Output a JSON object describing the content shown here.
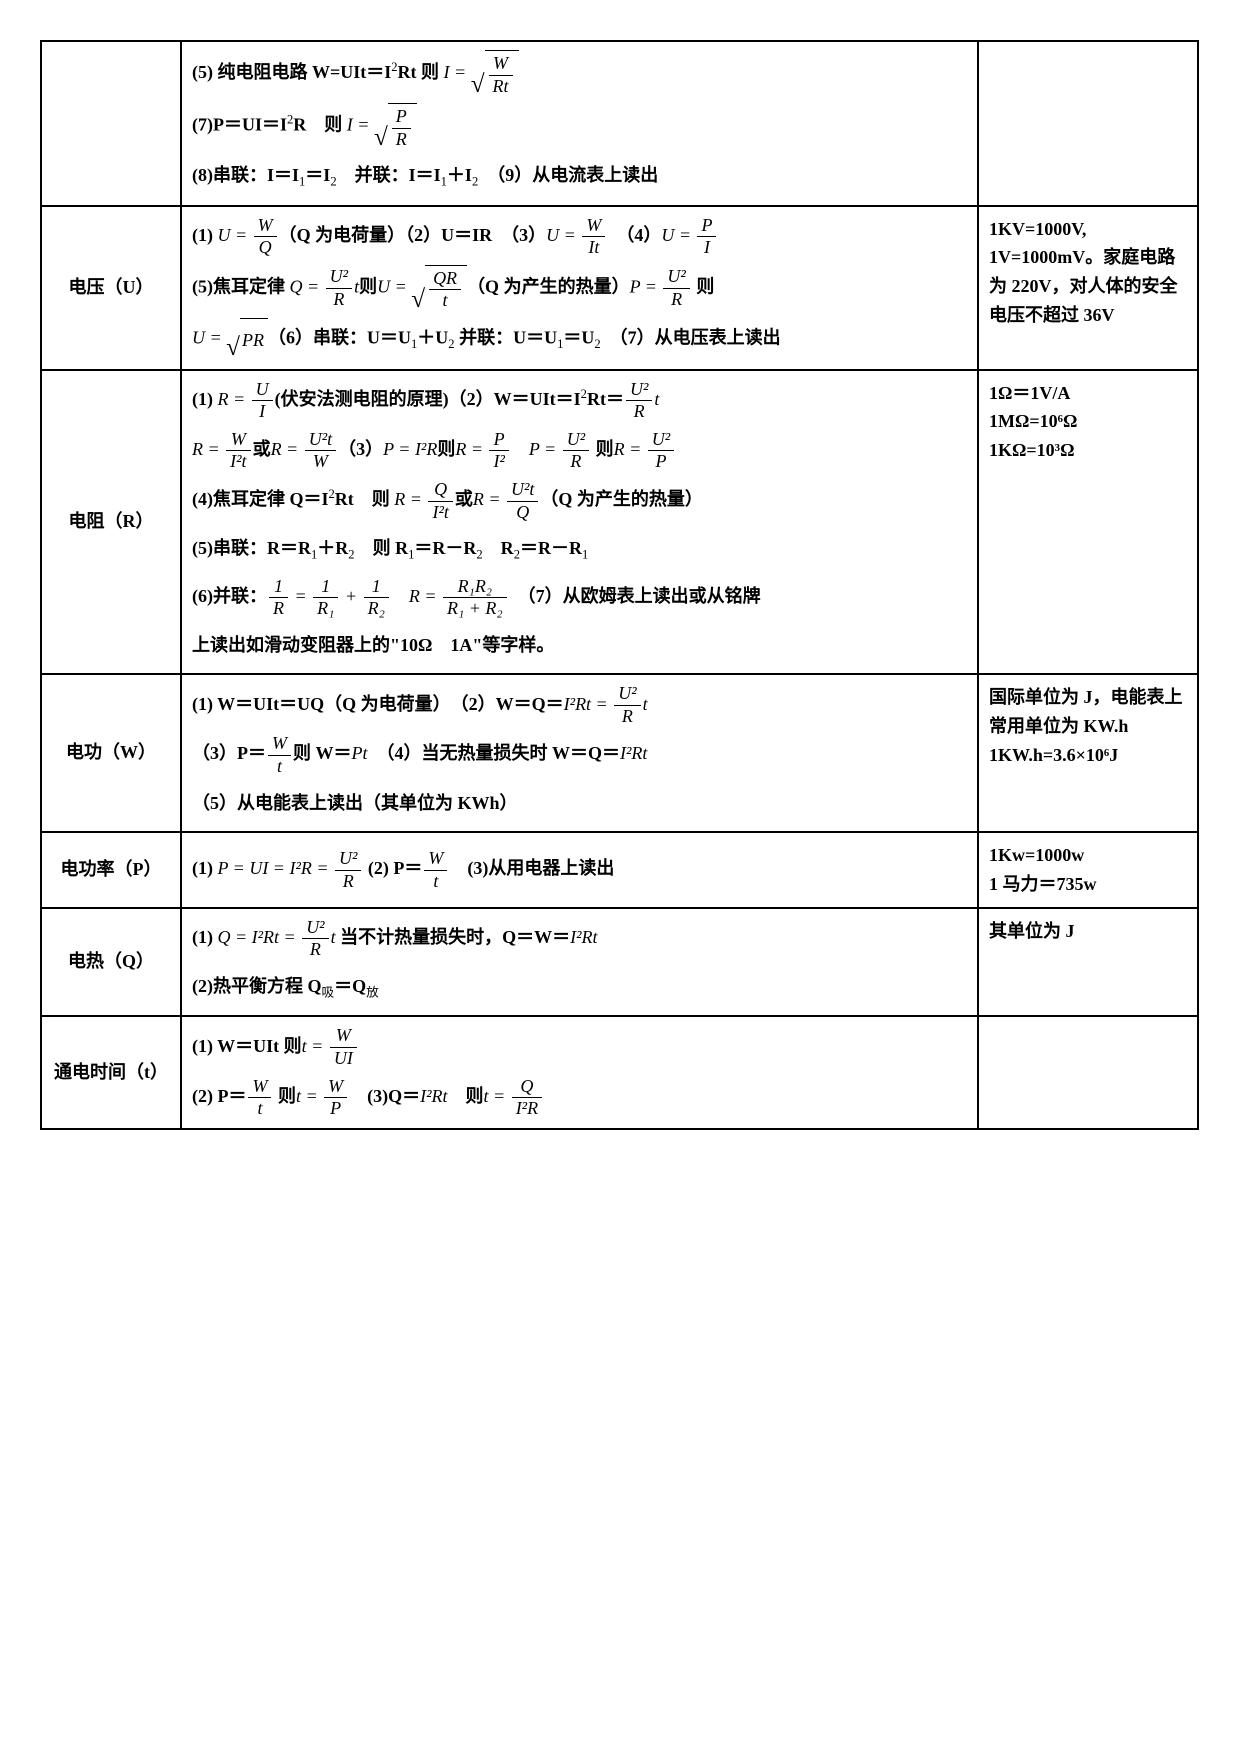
{
  "rows": [
    {
      "label": "",
      "notes": "",
      "lines": [
        {
          "parts": [
            {
              "t": "text",
              "v": "(5) 纯电阻电路 W=UIt＝I",
              "bold": true
            },
            {
              "t": "sup",
              "v": "2"
            },
            {
              "t": "text",
              "v": "Rt 则 ",
              "bold": true
            },
            {
              "t": "math",
              "v": "I = "
            },
            {
              "t": "sqrt",
              "num": "W",
              "den": "Rt"
            }
          ]
        },
        {
          "parts": [
            {
              "t": "text",
              "v": "(7)P＝UI＝I",
              "bold": true
            },
            {
              "t": "sup",
              "v": "2"
            },
            {
              "t": "text",
              "v": "R　则 ",
              "bold": true
            },
            {
              "t": "math",
              "v": "I = "
            },
            {
              "t": "sqrt",
              "num": "P",
              "den": "R"
            }
          ]
        },
        {
          "parts": [
            {
              "t": "text",
              "v": "(8)串联：I＝I",
              "bold": true
            },
            {
              "t": "sub",
              "v": "1"
            },
            {
              "t": "text",
              "v": "＝I",
              "bold": true
            },
            {
              "t": "sub",
              "v": "2"
            },
            {
              "t": "text",
              "v": "　并联：I＝I",
              "bold": true
            },
            {
              "t": "sub",
              "v": "1"
            },
            {
              "t": "text",
              "v": "＋I",
              "bold": true
            },
            {
              "t": "sub",
              "v": "2"
            },
            {
              "t": "text",
              "v": "　（9）从电流表上读出",
              "bold": true
            }
          ]
        }
      ]
    },
    {
      "label": "电压（U）",
      "notes": "1KV=1000V,\n1V=1000mV。家庭电路为 220V，对人体的安全电压不超过 36V",
      "lines": [
        {
          "parts": [
            {
              "t": "text",
              "v": "(1) ",
              "bold": true
            },
            {
              "t": "math",
              "v": "U = "
            },
            {
              "t": "frac",
              "num": "W",
              "den": "Q"
            },
            {
              "t": "text",
              "v": "（Q 为电荷量）（2）U＝IR　（3）",
              "bold": true
            },
            {
              "t": "math",
              "v": "U = "
            },
            {
              "t": "frac",
              "num": "W",
              "den": "It"
            },
            {
              "t": "text",
              "v": "　（4）",
              "bold": true
            },
            {
              "t": "math",
              "v": "U = "
            },
            {
              "t": "frac",
              "num": "P",
              "den": "I"
            }
          ]
        },
        {
          "parts": [
            {
              "t": "text",
              "v": "(5)焦耳定律 ",
              "bold": true
            },
            {
              "t": "math",
              "v": "Q = "
            },
            {
              "t": "frac",
              "num": "U²",
              "den": "R"
            },
            {
              "t": "math",
              "v": "t"
            },
            {
              "t": "text",
              "v": "则",
              "bold": true
            },
            {
              "t": "math",
              "v": "U = "
            },
            {
              "t": "sqrt",
              "num": "QR",
              "den": "t"
            },
            {
              "t": "text",
              "v": "（Q 为产生的热量）",
              "bold": true
            },
            {
              "t": "math",
              "v": "P = "
            },
            {
              "t": "frac",
              "num": "U²",
              "den": "R"
            },
            {
              "t": "text",
              "v": " 则",
              "bold": true
            }
          ]
        },
        {
          "parts": [
            {
              "t": "math",
              "v": "U = "
            },
            {
              "t": "sqrtflat",
              "v": "PR"
            },
            {
              "t": "text",
              "v": "（6）串联：U＝U",
              "bold": true
            },
            {
              "t": "sub",
              "v": "1"
            },
            {
              "t": "text",
              "v": "＋U",
              "bold": true
            },
            {
              "t": "sub",
              "v": "2"
            },
            {
              "t": "text",
              "v": " 并联：U＝U",
              "bold": true
            },
            {
              "t": "sub",
              "v": "1"
            },
            {
              "t": "text",
              "v": "＝U",
              "bold": true
            },
            {
              "t": "sub",
              "v": "2"
            },
            {
              "t": "text",
              "v": "　（7）从电压表上读出",
              "bold": true
            }
          ]
        }
      ]
    },
    {
      "label": "电阻（R）",
      "notes": "1Ω＝1V/A\n1MΩ=10⁶Ω\n1KΩ=10³Ω",
      "lines": [
        {
          "parts": [
            {
              "t": "text",
              "v": "(1) ",
              "bold": true
            },
            {
              "t": "math",
              "v": "R = "
            },
            {
              "t": "frac",
              "num": "U",
              "den": "I"
            },
            {
              "t": "text",
              "v": "(伏安法测电阻的原理)（2）W＝UIt＝I",
              "bold": true
            },
            {
              "t": "sup",
              "v": "2"
            },
            {
              "t": "text",
              "v": "Rt＝",
              "bold": true
            },
            {
              "t": "frac",
              "num": "U²",
              "den": "R"
            },
            {
              "t": "math",
              "v": "t"
            }
          ]
        },
        {
          "parts": [
            {
              "t": "math",
              "v": "R = "
            },
            {
              "t": "frac",
              "num": "W",
              "den": "I²t"
            },
            {
              "t": "text",
              "v": "或",
              "bold": true
            },
            {
              "t": "math",
              "v": "R = "
            },
            {
              "t": "frac",
              "num": "U²t",
              "den": "W"
            },
            {
              "t": "text",
              "v": "（3）",
              "bold": true
            },
            {
              "t": "math",
              "v": "P = I²R"
            },
            {
              "t": "text",
              "v": "则",
              "bold": true
            },
            {
              "t": "math",
              "v": "R = "
            },
            {
              "t": "frac",
              "num": "P",
              "den": "I²"
            },
            {
              "t": "text",
              "v": "　",
              "bold": true
            },
            {
              "t": "math",
              "v": "P = "
            },
            {
              "t": "frac",
              "num": "U²",
              "den": "R"
            },
            {
              "t": "text",
              "v": " 则",
              "bold": true
            },
            {
              "t": "math",
              "v": "R = "
            },
            {
              "t": "frac",
              "num": "U²",
              "den": "P"
            }
          ]
        },
        {
          "parts": [
            {
              "t": "text",
              "v": "(4)焦耳定律 Q＝I",
              "bold": true
            },
            {
              "t": "sup",
              "v": "2"
            },
            {
              "t": "text",
              "v": "Rt　则 ",
              "bold": true
            },
            {
              "t": "math",
              "v": "R = "
            },
            {
              "t": "frac",
              "num": "Q",
              "den": "I²t"
            },
            {
              "t": "text",
              "v": "或",
              "bold": true
            },
            {
              "t": "math",
              "v": "R = "
            },
            {
              "t": "frac",
              "num": "U²t",
              "den": "Q"
            },
            {
              "t": "text",
              "v": "（Q 为产生的热量）",
              "bold": true
            }
          ]
        },
        {
          "parts": [
            {
              "t": "text",
              "v": "(5)串联：R＝R",
              "bold": true
            },
            {
              "t": "sub",
              "v": "1"
            },
            {
              "t": "text",
              "v": "＋R",
              "bold": true
            },
            {
              "t": "sub",
              "v": "2"
            },
            {
              "t": "text",
              "v": "　则 R",
              "bold": true
            },
            {
              "t": "sub",
              "v": "1"
            },
            {
              "t": "text",
              "v": "＝R－R",
              "bold": true
            },
            {
              "t": "sub",
              "v": "2"
            },
            {
              "t": "text",
              "v": "　R",
              "bold": true
            },
            {
              "t": "sub",
              "v": "2"
            },
            {
              "t": "text",
              "v": "＝R－R",
              "bold": true
            },
            {
              "t": "sub",
              "v": "1"
            }
          ]
        },
        {
          "parts": [
            {
              "t": "text",
              "v": "(6)并联：",
              "bold": true
            },
            {
              "t": "frac",
              "num": "1",
              "den": "R"
            },
            {
              "t": "math",
              "v": " = "
            },
            {
              "t": "frac",
              "num": "1",
              "den": "R₁"
            },
            {
              "t": "math",
              "v": " + "
            },
            {
              "t": "frac",
              "num": "1",
              "den": "R₂"
            },
            {
              "t": "text",
              "v": "　",
              "bold": true
            },
            {
              "t": "math",
              "v": "R = "
            },
            {
              "t": "frac",
              "num": "R₁R₂",
              "den": "R₁ + R₂"
            },
            {
              "t": "text",
              "v": "　（7）从欧姆表上读出或从铭牌",
              "bold": true
            }
          ]
        },
        {
          "parts": [
            {
              "t": "text",
              "v": "上读出如滑动变阻器上的\"10Ω　1A\"等字样。",
              "bold": true
            }
          ]
        }
      ]
    },
    {
      "label": "电功（W）",
      "notes": "国际单位为 J，电能表上常用单位为 KW.h\n1KW.h=3.6×10⁶J",
      "lines": [
        {
          "parts": [
            {
              "t": "text",
              "v": "(1) W＝UIt＝UQ（Q 为电荷量）　（2）W＝Q＝",
              "bold": true
            },
            {
              "t": "math",
              "v": "I²Rt = "
            },
            {
              "t": "frac",
              "num": "U²",
              "den": "R"
            },
            {
              "t": "math",
              "v": "t"
            }
          ]
        },
        {
          "parts": [
            {
              "t": "text",
              "v": "（3）P＝",
              "bold": true
            },
            {
              "t": "frac",
              "num": "W",
              "den": "t"
            },
            {
              "t": "text",
              "v": "则 W＝",
              "bold": true
            },
            {
              "t": "math",
              "v": "Pt"
            },
            {
              "t": "text",
              "v": "　（4）当无热量损失时 W＝Q＝",
              "bold": true
            },
            {
              "t": "math",
              "v": "I²Rt"
            }
          ]
        },
        {
          "parts": [
            {
              "t": "text",
              "v": "（5）从电能表上读出（其单位为 KWh）",
              "bold": true
            }
          ]
        }
      ]
    },
    {
      "label": "电功率（P）",
      "notes": "1Kw=1000w\n1 马力＝735w",
      "lines": [
        {
          "parts": [
            {
              "t": "text",
              "v": "(1) ",
              "bold": true
            },
            {
              "t": "math",
              "v": "P = UI = I²R = "
            },
            {
              "t": "frac",
              "num": "U²",
              "den": "R"
            },
            {
              "t": "text",
              "v": " (2) P＝",
              "bold": true
            },
            {
              "t": "frac",
              "num": "W",
              "den": "t"
            },
            {
              "t": "text",
              "v": "　(3)从用电器上读出",
              "bold": true
            }
          ]
        }
      ]
    },
    {
      "label": "电热（Q）",
      "notes": "其单位为 J",
      "lines": [
        {
          "parts": [
            {
              "t": "text",
              "v": "(1) ",
              "bold": true
            },
            {
              "t": "math",
              "v": "Q = I²Rt = "
            },
            {
              "t": "frac",
              "num": "U²",
              "den": "R"
            },
            {
              "t": "math",
              "v": "t"
            },
            {
              "t": "text",
              "v": " 当不计热量损失时，Q＝W＝",
              "bold": true
            },
            {
              "t": "math",
              "v": "I²Rt"
            }
          ]
        },
        {
          "parts": [
            {
              "t": "text",
              "v": "(2)热平衡方程 Q",
              "bold": true
            },
            {
              "t": "sub",
              "v": "吸"
            },
            {
              "t": "text",
              "v": "＝Q",
              "bold": true
            },
            {
              "t": "sub",
              "v": "放"
            }
          ]
        }
      ]
    },
    {
      "label": "通电时间（t）",
      "notes": "",
      "lines": [
        {
          "parts": [
            {
              "t": "text",
              "v": "(1) W＝UIt 则",
              "bold": true
            },
            {
              "t": "math",
              "v": "t = "
            },
            {
              "t": "frac",
              "num": "W",
              "den": "UI"
            }
          ]
        },
        {
          "parts": [
            {
              "t": "text",
              "v": "(2) P＝",
              "bold": true
            },
            {
              "t": "frac",
              "num": "W",
              "den": "t"
            },
            {
              "t": "text",
              "v": " 则",
              "bold": true
            },
            {
              "t": "math",
              "v": "t = "
            },
            {
              "t": "frac",
              "num": "W",
              "den": "P"
            },
            {
              "t": "text",
              "v": "　(3)Q＝",
              "bold": true
            },
            {
              "t": "math",
              "v": "I²Rt"
            },
            {
              "t": "text",
              "v": "　则",
              "bold": true
            },
            {
              "t": "math",
              "v": "t = "
            },
            {
              "t": "frac",
              "num": "Q",
              "den": "I²R"
            }
          ]
        }
      ]
    }
  ]
}
